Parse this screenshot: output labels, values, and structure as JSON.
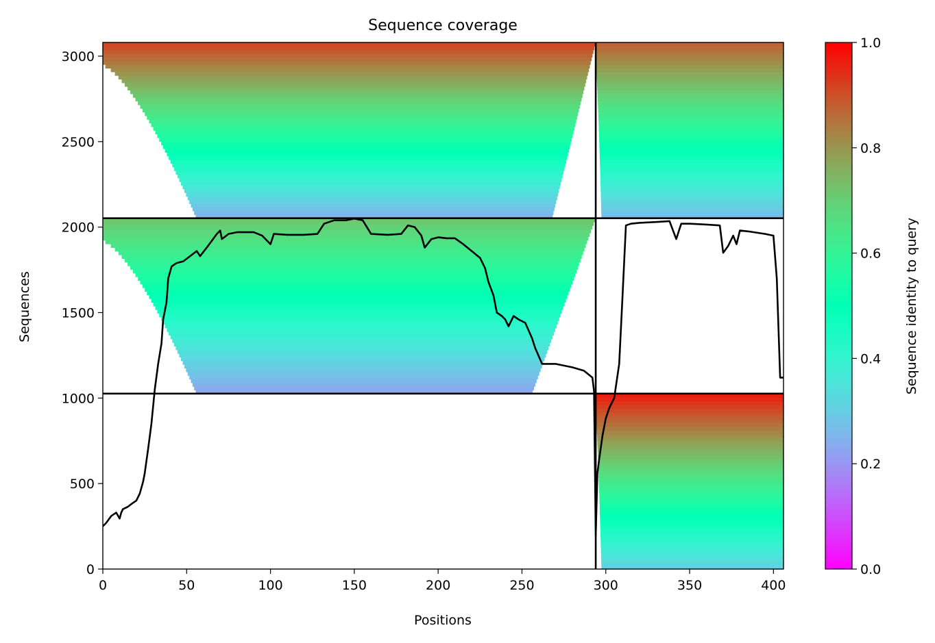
{
  "chart_data": {
    "type": "heatmap",
    "title": "Sequence coverage",
    "xlabel": "Positions",
    "ylabel": "Sequences",
    "colorbar_label": "Sequence identity to query",
    "colormap": "rainbow",
    "xlim": [
      0,
      406
    ],
    "ylim": [
      0,
      3080
    ],
    "clim": [
      0,
      1
    ],
    "x_ticks": [
      0,
      50,
      100,
      150,
      200,
      250,
      300,
      350,
      400
    ],
    "y_ticks": [
      0,
      500,
      1000,
      1500,
      2000,
      2500,
      3000
    ],
    "colorbar_ticks": [
      0.0,
      0.2,
      0.4,
      0.6,
      0.8,
      1.0
    ],
    "chain_boundaries": {
      "x": [
        294
      ],
      "y": [
        1026,
        2052
      ]
    },
    "blocks": [
      {
        "name": "chain-A-unique",
        "x": [
          0,
          294
        ],
        "y": [
          1026,
          2052
        ],
        "identity_top": 0.72,
        "identity_bottom": 0.22,
        "coverage_end": 256,
        "coverage_end_top": 294
      },
      {
        "name": "chain-A-paired",
        "x": [
          0,
          294
        ],
        "y": [
          2052,
          3080
        ],
        "identity_top": 0.92,
        "identity_bottom": 0.24,
        "coverage_end": 268,
        "coverage_end_top": 294
      },
      {
        "name": "chain-B-paired",
        "x": [
          294,
          406
        ],
        "y": [
          2052,
          3080
        ],
        "identity_top": 0.88,
        "identity_bottom": 0.26,
        "coverage_end": 406,
        "coverage_end_top": 406
      },
      {
        "name": "chain-B-unique",
        "x": [
          294,
          406
        ],
        "y": [
          0,
          1026
        ],
        "identity_top": 0.97,
        "identity_bottom": 0.3,
        "coverage_end": 406,
        "coverage_end_top": 406
      }
    ],
    "coverage_line": {
      "x": [
        0,
        2,
        5,
        8,
        10,
        11,
        12,
        15,
        17,
        20,
        22,
        24,
        25,
        27,
        29,
        31,
        33,
        35,
        36,
        38,
        39,
        41,
        44,
        48,
        52,
        56,
        58,
        62,
        65,
        68,
        70,
        71,
        75,
        80,
        90,
        95,
        100,
        102,
        110,
        120,
        128,
        132,
        138,
        145,
        150,
        155,
        160,
        170,
        178,
        182,
        186,
        190,
        192,
        196,
        200,
        205,
        210,
        215,
        220,
        225,
        228,
        230,
        233,
        235,
        238,
        240,
        242,
        245,
        248,
        252,
        256,
        258,
        262,
        270,
        280,
        287,
        292,
        293,
        294,
        295,
        296,
        298,
        300,
        302,
        305,
        308,
        310,
        312,
        315,
        320,
        330,
        338,
        342,
        345,
        350,
        360,
        368,
        370,
        373,
        376,
        378,
        380,
        385,
        395,
        400,
        402,
        404,
        406
      ],
      "y": [
        250,
        270,
        310,
        330,
        295,
        330,
        350,
        365,
        380,
        400,
        440,
        510,
        560,
        700,
        850,
        1050,
        1200,
        1320,
        1460,
        1560,
        1700,
        1770,
        1790,
        1800,
        1830,
        1860,
        1830,
        1880,
        1920,
        1960,
        1980,
        1930,
        1960,
        1970,
        1970,
        1950,
        1900,
        1960,
        1955,
        1955,
        1960,
        2020,
        2040,
        2040,
        2050,
        2040,
        1960,
        1955,
        1960,
        2010,
        2000,
        1950,
        1880,
        1930,
        1940,
        1935,
        1935,
        1900,
        1860,
        1820,
        1760,
        1680,
        1600,
        1500,
        1480,
        1460,
        1420,
        1480,
        1460,
        1440,
        1350,
        1290,
        1200,
        1200,
        1180,
        1160,
        1120,
        1040,
        200,
        560,
        640,
        780,
        880,
        940,
        1000,
        1200,
        1600,
        2010,
        2020,
        2025,
        2030,
        2035,
        1930,
        2020,
        2020,
        2015,
        2010,
        1850,
        1890,
        1950,
        1900,
        1980,
        1975,
        1960,
        1950,
        1700,
        1120,
        1120
      ]
    }
  }
}
